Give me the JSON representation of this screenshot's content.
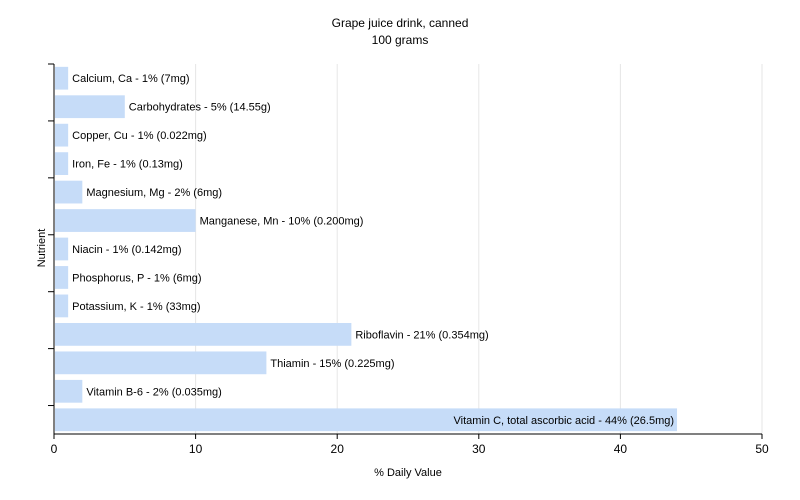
{
  "chart_data": {
    "type": "bar",
    "orientation": "horizontal",
    "title": "Grape juice drink, canned",
    "subtitle": "100 grams",
    "xlabel": "% Daily Value",
    "ylabel": "Nutrient",
    "xlim": [
      0,
      50
    ],
    "xticks": [
      0,
      10,
      20,
      30,
      40,
      50
    ],
    "grid": true,
    "bar_color": "#c6dcf8",
    "gridline_color": "#e6e6e6",
    "categories": [
      "Calcium, Ca",
      "Carbohydrates",
      "Copper, Cu",
      "Iron, Fe",
      "Magnesium, Mg",
      "Manganese, Mn",
      "Niacin",
      "Phosphorus, P",
      "Potassium, K",
      "Riboflavin",
      "Thiamin",
      "Vitamin B-6",
      "Vitamin C, total ascorbic acid"
    ],
    "values": [
      1,
      5,
      1,
      1,
      2,
      10,
      1,
      1,
      1,
      21,
      15,
      2,
      44
    ],
    "labels": [
      "Calcium, Ca - 1% (7mg)",
      "Carbohydrates - 5% (14.55g)",
      "Copper, Cu - 1% (0.022mg)",
      "Iron, Fe - 1% (0.13mg)",
      "Magnesium, Mg - 2% (6mg)",
      "Manganese, Mn - 10% (0.200mg)",
      "Niacin - 1% (0.142mg)",
      "Phosphorus, P - 1% (6mg)",
      "Potassium, K - 1% (33mg)",
      "Riboflavin - 21% (0.354mg)",
      "Thiamin - 15% (0.225mg)",
      "Vitamin B-6 - 2% (0.035mg)",
      "Vitamin C, total ascorbic acid - 44% (26.5mg)"
    ]
  }
}
